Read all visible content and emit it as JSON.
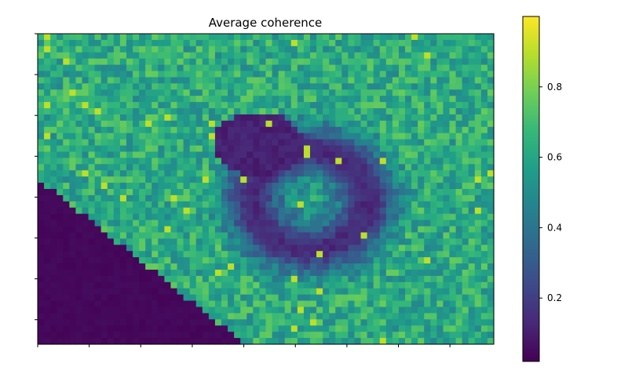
{
  "chart_data": {
    "type": "heatmap",
    "title": "Average coherence",
    "xlabel": "",
    "ylabel": "",
    "colormap": "viridis",
    "value_range": [
      0.02,
      1.0
    ],
    "colorbar": {
      "ticks": [
        0.2,
        0.4,
        0.6,
        0.8
      ],
      "tick_labels": [
        "0.2",
        "0.4",
        "0.6",
        "0.8"
      ]
    },
    "x_tick_labels_shown": false,
    "y_tick_labels_shown": false,
    "grid": false,
    "description_of_field": {
      "background_level": 0.62,
      "low_coherence_region": "center (dark ring around crater) ~0.1-0.2",
      "no_data_region": "lower-left corner ~0.03"
    }
  },
  "colors": {
    "viridis": [
      "#440154",
      "#482878",
      "#3e4a89",
      "#31688e",
      "#26828e",
      "#1f9e89",
      "#35b779",
      "#6ece58",
      "#b5de2b",
      "#fde725"
    ]
  }
}
